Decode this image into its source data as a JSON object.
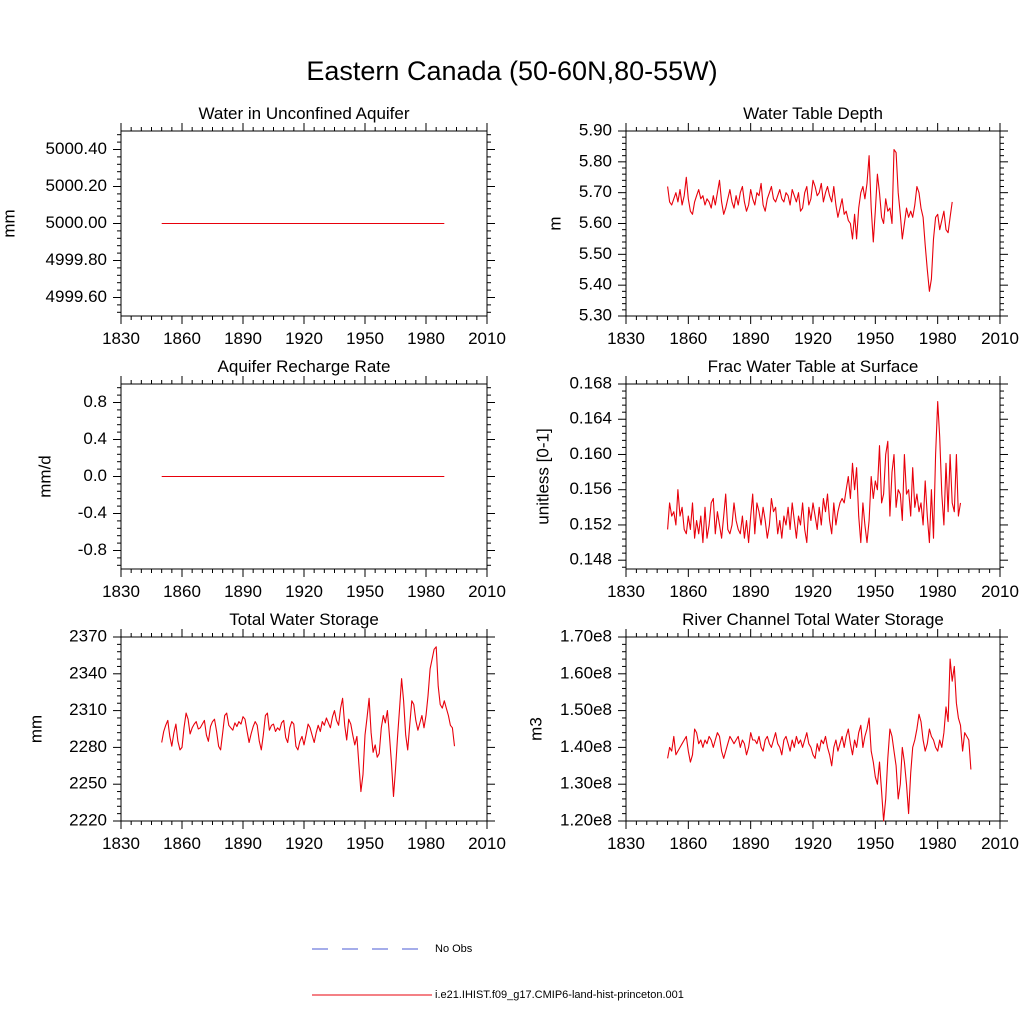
{
  "figure": {
    "title": "Eastern Canada (50-60N,80-55W)",
    "legend": [
      {
        "label": "No Obs",
        "color": "#4b5bd4",
        "style": "dashed"
      },
      {
        "label": "i.e21.IHIST.f09_g17.CMIP6-land-hist-princeton.001",
        "color": "#e8000b",
        "style": "solid"
      }
    ]
  },
  "chart_data": [
    {
      "type": "line",
      "title": "Water in Unconfined Aquifer",
      "xlabel": "",
      "ylabel": "mm",
      "xlim": [
        1830,
        2010
      ],
      "ylim": [
        4999.5,
        5000.5
      ],
      "xticks": [
        1830,
        1860,
        1890,
        1920,
        1950,
        1980,
        2010
      ],
      "yticks": [
        4999.6,
        4999.8,
        5000.0,
        5000.2,
        5000.4
      ],
      "ytick_labels": [
        "4999.60",
        "4999.80",
        "5000.00",
        "5000.20",
        "5000.40"
      ],
      "x_start": 1850,
      "series": [
        {
          "values": [
            5000.0,
            5000.0
          ]
        }
      ],
      "x_override": [
        1850,
        1989
      ]
    },
    {
      "type": "line",
      "title": "Water Table Depth",
      "xlabel": "",
      "ylabel": "m",
      "xlim": [
        1830,
        2010
      ],
      "ylim": [
        5.3,
        5.9
      ],
      "xticks": [
        1830,
        1860,
        1890,
        1920,
        1950,
        1980,
        2010
      ],
      "yticks": [
        5.3,
        5.4,
        5.5,
        5.6,
        5.7,
        5.8,
        5.9
      ],
      "ytick_labels": [
        "5.30",
        "5.40",
        "5.50",
        "5.60",
        "5.70",
        "5.80",
        "5.90"
      ],
      "x_start": 1850,
      "series": [
        {
          "values": [
            5.72,
            5.67,
            5.66,
            5.68,
            5.7,
            5.67,
            5.71,
            5.66,
            5.69,
            5.75,
            5.68,
            5.64,
            5.63,
            5.67,
            5.69,
            5.71,
            5.68,
            5.69,
            5.66,
            5.68,
            5.67,
            5.65,
            5.69,
            5.66,
            5.7,
            5.74,
            5.67,
            5.63,
            5.65,
            5.68,
            5.71,
            5.67,
            5.65,
            5.69,
            5.66,
            5.7,
            5.72,
            5.67,
            5.64,
            5.66,
            5.71,
            5.68,
            5.66,
            5.7,
            5.69,
            5.73,
            5.66,
            5.64,
            5.68,
            5.7,
            5.72,
            5.68,
            5.67,
            5.69,
            5.71,
            5.68,
            5.67,
            5.7,
            5.69,
            5.66,
            5.71,
            5.69,
            5.67,
            5.7,
            5.64,
            5.65,
            5.7,
            5.72,
            5.66,
            5.68,
            5.74,
            5.72,
            5.69,
            5.7,
            5.73,
            5.67,
            5.7,
            5.72,
            5.69,
            5.67,
            5.72,
            5.66,
            5.62,
            5.65,
            5.68,
            5.63,
            5.64,
            5.61,
            5.6,
            5.55,
            5.63,
            5.55,
            5.65,
            5.7,
            5.72,
            5.68,
            5.73,
            5.82,
            5.65,
            5.54,
            5.64,
            5.76,
            5.7,
            5.62,
            5.6,
            5.68,
            5.64,
            5.65,
            5.6,
            5.84,
            5.83,
            5.7,
            5.63,
            5.55,
            5.6,
            5.65,
            5.62,
            5.64,
            5.62,
            5.66,
            5.72,
            5.7,
            5.65,
            5.62,
            5.53,
            5.45,
            5.38,
            5.42,
            5.55,
            5.62,
            5.63,
            5.58,
            5.61,
            5.64,
            5.58,
            5.57,
            5.62,
            5.67
          ]
        }
      ]
    },
    {
      "type": "line",
      "title": "Aquifer Recharge Rate",
      "xlabel": "",
      "ylabel": "mm/d",
      "xlim": [
        1830,
        2010
      ],
      "ylim": [
        -1.0,
        1.0
      ],
      "xticks": [
        1830,
        1860,
        1890,
        1920,
        1950,
        1980,
        2010
      ],
      "yticks": [
        -0.8,
        -0.4,
        0.0,
        0.4,
        0.8
      ],
      "ytick_labels": [
        "-0.8",
        "-0.4",
        "0.0",
        "0.4",
        "0.8"
      ],
      "x_start": 1850,
      "series": [
        {
          "values": [
            0.0,
            0.0
          ]
        }
      ],
      "x_override": [
        1850,
        1989
      ]
    },
    {
      "type": "line",
      "title": "Frac Water Table at Surface",
      "xlabel": "",
      "ylabel": "unitless [0-1]",
      "xlim": [
        1830,
        2010
      ],
      "ylim": [
        0.147,
        0.168
      ],
      "xticks": [
        1830,
        1860,
        1890,
        1920,
        1950,
        1980,
        2010
      ],
      "yticks": [
        0.148,
        0.152,
        0.156,
        0.16,
        0.164,
        0.168
      ],
      "ytick_labels": [
        "0.148",
        "0.152",
        "0.156",
        "0.160",
        "0.164",
        "0.168"
      ],
      "x_start": 1850,
      "series": [
        {
          "values": [
            0.1515,
            0.1545,
            0.153,
            0.1535,
            0.152,
            0.156,
            0.153,
            0.154,
            0.1515,
            0.151,
            0.153,
            0.1515,
            0.1545,
            0.1505,
            0.1525,
            0.151,
            0.153,
            0.15,
            0.154,
            0.1505,
            0.152,
            0.1545,
            0.155,
            0.151,
            0.1535,
            0.152,
            0.1505,
            0.153,
            0.1555,
            0.1515,
            0.151,
            0.152,
            0.1545,
            0.1525,
            0.1515,
            0.151,
            0.153,
            0.1505,
            0.1525,
            0.15,
            0.153,
            0.1555,
            0.151,
            0.1545,
            0.1535,
            0.152,
            0.154,
            0.1525,
            0.1505,
            0.152,
            0.155,
            0.1535,
            0.154,
            0.151,
            0.1525,
            0.1505,
            0.153,
            0.152,
            0.154,
            0.1515,
            0.1545,
            0.1525,
            0.1505,
            0.153,
            0.152,
            0.1545,
            0.1515,
            0.15,
            0.154,
            0.1525,
            0.1545,
            0.153,
            0.1515,
            0.154,
            0.152,
            0.155,
            0.1535,
            0.1555,
            0.1525,
            0.151,
            0.1545,
            0.152,
            0.1535,
            0.1545,
            0.155,
            0.1545,
            0.156,
            0.1575,
            0.155,
            0.159,
            0.156,
            0.1585,
            0.153,
            0.15,
            0.1545,
            0.152,
            0.15,
            0.1525,
            0.1575,
            0.155,
            0.157,
            0.156,
            0.161,
            0.1545,
            0.1555,
            0.16,
            0.1615,
            0.153,
            0.158,
            0.16,
            0.154,
            0.156,
            0.1555,
            0.1525,
            0.16,
            0.1555,
            0.156,
            0.153,
            0.1585,
            0.154,
            0.1555,
            0.1535,
            0.1545,
            0.152,
            0.157,
            0.153,
            0.15,
            0.156,
            0.1505,
            0.16,
            0.166,
            0.162,
            0.1555,
            0.152,
            0.159,
            0.1535,
            0.16,
            0.1545,
            0.1535,
            0.16,
            0.153,
            0.1545
          ]
        }
      ]
    },
    {
      "type": "line",
      "title": "Total Water Storage",
      "xlabel": "",
      "ylabel": "mm",
      "xlim": [
        1830,
        2010
      ],
      "ylim": [
        2220,
        2370
      ],
      "xticks": [
        1830,
        1860,
        1890,
        1920,
        1950,
        1980,
        2010
      ],
      "yticks": [
        2220,
        2250,
        2280,
        2310,
        2340,
        2370
      ],
      "ytick_labels": [
        "2220",
        "2250",
        "2280",
        "2310",
        "2340",
        "2370"
      ],
      "x_start": 1850,
      "series": [
        {
          "values": [
            2284,
            2293,
            2298,
            2302,
            2289,
            2281,
            2292,
            2299,
            2285,
            2278,
            2280,
            2296,
            2308,
            2303,
            2291,
            2296,
            2299,
            2301,
            2295,
            2296,
            2299,
            2302,
            2290,
            2285,
            2297,
            2301,
            2303,
            2293,
            2281,
            2278,
            2292,
            2306,
            2308,
            2298,
            2296,
            2294,
            2300,
            2297,
            2301,
            2299,
            2305,
            2303,
            2293,
            2284,
            2291,
            2297,
            2301,
            2298,
            2285,
            2278,
            2290,
            2306,
            2308,
            2294,
            2298,
            2299,
            2293,
            2296,
            2294,
            2300,
            2302,
            2288,
            2284,
            2296,
            2301,
            2299,
            2281,
            2278,
            2285,
            2289,
            2282,
            2290,
            2299,
            2296,
            2290,
            2284,
            2292,
            2298,
            2293,
            2301,
            2298,
            2304,
            2300,
            2296,
            2305,
            2310,
            2302,
            2298,
            2312,
            2320,
            2298,
            2286,
            2303,
            2299,
            2290,
            2282,
            2289,
            2266,
            2244,
            2258,
            2290,
            2304,
            2320,
            2292,
            2276,
            2282,
            2272,
            2275,
            2296,
            2306,
            2300,
            2310,
            2290,
            2268,
            2240,
            2262,
            2288,
            2312,
            2336,
            2318,
            2290,
            2278,
            2298,
            2318,
            2315,
            2302,
            2294,
            2300,
            2306,
            2296,
            2306,
            2322,
            2344,
            2352,
            2360,
            2362,
            2330,
            2315,
            2312,
            2318,
            2312,
            2306,
            2298,
            2296,
            2281
          ]
        }
      ]
    },
    {
      "type": "line",
      "title": "River Channel Total Water Storage",
      "xlabel": "",
      "ylabel": "m3",
      "xlim": [
        1830,
        2010
      ],
      "ylim": [
        120000000.0,
        170000000.0
      ],
      "xticks": [
        1830,
        1860,
        1890,
        1920,
        1950,
        1980,
        2010
      ],
      "yticks": [
        120000000.0,
        130000000.0,
        140000000.0,
        150000000.0,
        160000000.0,
        170000000.0
      ],
      "ytick_labels": [
        "1.20e8",
        "1.30e8",
        "1.40e8",
        "1.50e8",
        "1.60e8",
        "1.70e8"
      ],
      "x_start": 1850,
      "series": [
        {
          "values": [
            137000000.0,
            140000000.0,
            139000000.0,
            143000000.0,
            138000000.0,
            139000000.0,
            140000000.0,
            141000000.0,
            142000000.0,
            143000000.0,
            139000000.0,
            136000000.0,
            138000000.0,
            145000000.0,
            144000000.0,
            141000000.0,
            142000000.0,
            140000000.0,
            142000000.0,
            141000000.0,
            143000000.0,
            142000000.0,
            140000000.0,
            142000000.0,
            144000000.0,
            143000000.0,
            139000000.0,
            137000000.0,
            139000000.0,
            141000000.0,
            143000000.0,
            142000000.0,
            141000000.0,
            142000000.0,
            143000000.0,
            140000000.0,
            142000000.0,
            141000000.0,
            138000000.0,
            140000000.0,
            144000000.0,
            142000000.0,
            142000000.0,
            141000000.0,
            143000000.0,
            140000000.0,
            139000000.0,
            142000000.0,
            143000000.0,
            141000000.0,
            140000000.0,
            142000000.0,
            144000000.0,
            141000000.0,
            140000000.0,
            138000000.0,
            142000000.0,
            143000000.0,
            141000000.0,
            139000000.0,
            142000000.0,
            140000000.0,
            143000000.0,
            141000000.0,
            142000000.0,
            140000000.0,
            142000000.0,
            144000000.0,
            141000000.0,
            140000000.0,
            138000000.0,
            137000000.0,
            141000000.0,
            139000000.0,
            142000000.0,
            141000000.0,
            143000000.0,
            140000000.0,
            138000000.0,
            135000000.0,
            140000000.0,
            142000000.0,
            139000000.0,
            141000000.0,
            143000000.0,
            140000000.0,
            143000000.0,
            145000000.0,
            141000000.0,
            138000000.0,
            142000000.0,
            140000000.0,
            144000000.0,
            146000000.0,
            140000000.0,
            143000000.0,
            145000000.0,
            148000000.0,
            139000000.0,
            136000000.0,
            132000000.0,
            130000000.0,
            136000000.0,
            128000000.0,
            120000000.0,
            126000000.0,
            137000000.0,
            145000000.0,
            143000000.0,
            139000000.0,
            135000000.0,
            126000000.0,
            130000000.0,
            140000000.0,
            136000000.0,
            130000000.0,
            122000000.0,
            133000000.0,
            140000000.0,
            142000000.0,
            145000000.0,
            149000000.0,
            147000000.0,
            142000000.0,
            139000000.0,
            141000000.0,
            145000000.0,
            143000000.0,
            142000000.0,
            140000000.0,
            139000000.0,
            142000000.0,
            140000000.0,
            144000000.0,
            151000000.0,
            147000000.0,
            164000000.0,
            158000000.0,
            162000000.0,
            152000000.0,
            148000000.0,
            146000000.0,
            139000000.0,
            144000000.0,
            143000000.0,
            142000000.0,
            134000000.0
          ]
        }
      ]
    }
  ]
}
